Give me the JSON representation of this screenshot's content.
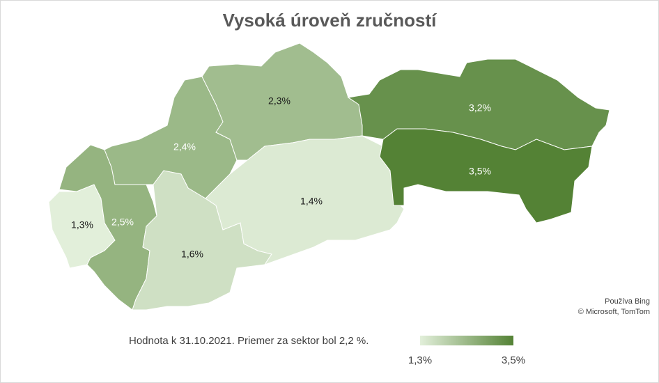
{
  "chart_data": {
    "type": "choropleth",
    "title": "Vysoká úroveň zručností",
    "values": [
      1.3,
      2.5,
      2.4,
      2.3,
      1.6,
      1.4,
      3.2,
      3.5
    ],
    "value_labels": [
      "1,3%",
      "2,5%",
      "2,4%",
      "2,3%",
      "1,6%",
      "1,4%",
      "3,2%",
      "3,5%"
    ],
    "color_scale": [
      "#e2efda",
      "#548235"
    ],
    "legend_min": {
      "value": 1.3,
      "label": "1,3%"
    },
    "legend_max": {
      "value": 3.5,
      "label": "3,5%"
    },
    "note": "Hodnota k 31.10.2021. Priemer za sektor bol 2,2 %.",
    "attribution": [
      "Používa Bing",
      "© Microsoft, TomTom"
    ]
  }
}
